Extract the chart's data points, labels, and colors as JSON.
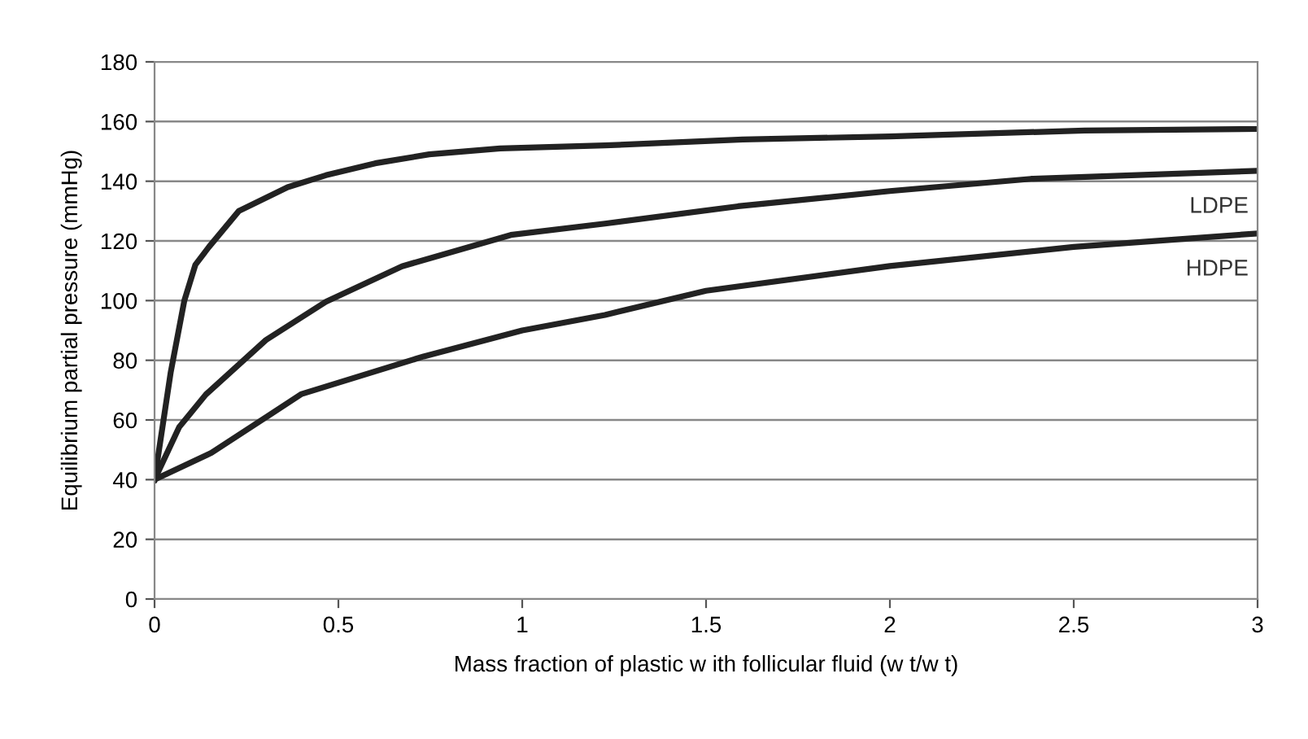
{
  "chart_data": {
    "type": "line",
    "xlabel": "Mass fraction of plastic w ith follicular fluid (w t/w t)",
    "ylabel": "Equilibrium partial pressure (mmHg)",
    "xlim": [
      0,
      3
    ],
    "xticks": [
      0,
      0.5,
      1,
      1.5,
      2,
      2.5,
      3
    ],
    "ylim": [
      0,
      180
    ],
    "yticks": [
      0,
      20,
      40,
      60,
      80,
      100,
      120,
      140,
      160,
      180
    ],
    "grid": "y",
    "marker": "none",
    "line_style": "solid",
    "series": [
      {
        "color": "#222222",
        "x": [
          0,
          0.044,
          0.081,
          0.111,
          0.148,
          0.229,
          0.362,
          0.466,
          0.6,
          0.747,
          0.94,
          1.225,
          1.6,
          2.0,
          2.53,
          3
        ],
        "values": [
          40,
          76,
          100,
          112,
          118,
          130,
          138,
          142,
          146,
          149,
          151,
          152,
          154,
          155,
          157,
          157.5
        ]
      },
      {
        "name": "LDPE",
        "color": "#222222",
        "x": [
          0,
          0.067,
          0.14,
          0.303,
          0.466,
          0.673,
          0.969,
          1.225,
          1.587,
          2.0,
          2.384,
          3
        ],
        "values": [
          40,
          57.6,
          68.6,
          86.8,
          99.6,
          111.5,
          122,
          125.8,
          131.6,
          136.7,
          140.8,
          143.5
        ]
      },
      {
        "name": "HDPE",
        "color": "#222222",
        "x": [
          0,
          0.155,
          0.4,
          0.732,
          1.0,
          1.225,
          1.5,
          2.0,
          2.5,
          3
        ],
        "values": [
          40,
          49,
          68.7,
          81.3,
          90,
          95.2,
          103.3,
          111.6,
          118,
          122.5
        ]
      }
    ]
  }
}
